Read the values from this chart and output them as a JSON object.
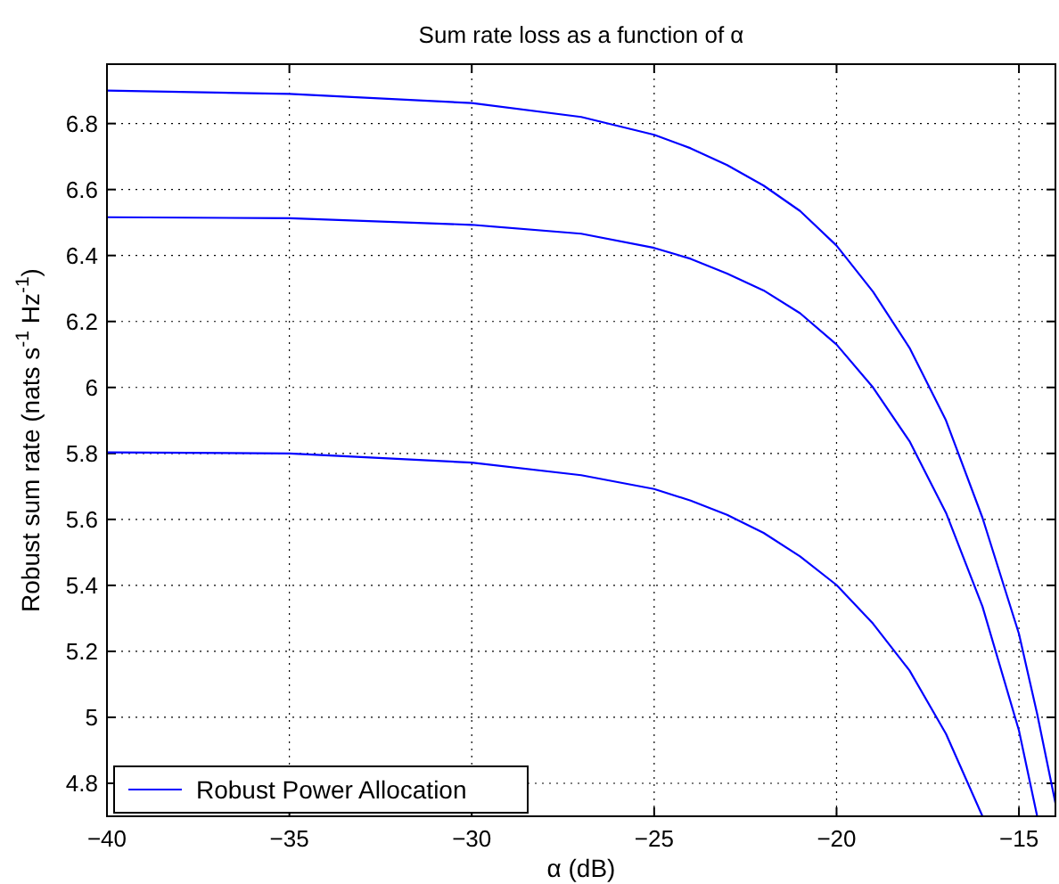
{
  "chart_data": {
    "type": "line",
    "title": "Sum rate loss as a function of α",
    "xlabel": "α (dB)",
    "ylabel": "Robust sum rate (nats s$^{-1}$ Hz$^{-1}$)",
    "xlim": [
      -40,
      -14
    ],
    "ylim": [
      4.7,
      6.98
    ],
    "xticks": [
      {
        "value": -40,
        "label": "−40"
      },
      {
        "value": -35,
        "label": "−35"
      },
      {
        "value": -30,
        "label": "−30"
      },
      {
        "value": -25,
        "label": "−25"
      },
      {
        "value": -20,
        "label": "−20"
      },
      {
        "value": -15,
        "label": "−15"
      }
    ],
    "yticks": [
      4.8,
      5,
      5.2,
      5.4,
      5.6,
      5.8,
      6,
      6.2,
      6.4,
      6.6,
      6.8
    ],
    "grid": true,
    "legend": "bottom left",
    "line_style": "solid",
    "marker": "none",
    "series": [
      {
        "name": "Robust Power Allocation",
        "color": "#0000ff",
        "x": [
          -40,
          -35,
          -30,
          -27,
          -25,
          -24,
          -23,
          -22,
          -21,
          -20,
          -19,
          -18,
          -17,
          -16,
          -15,
          -14.5,
          -14
        ],
        "values": [
          6.9,
          6.89,
          6.862,
          6.82,
          6.766,
          6.725,
          6.674,
          6.612,
          6.535,
          6.43,
          6.29,
          6.12,
          5.9,
          5.605,
          5.253,
          5.01,
          4.74
        ]
      },
      {
        "color": "#0000ff",
        "x": [
          -40,
          -35,
          -30,
          -27,
          -25,
          -24,
          -23,
          -22,
          -21,
          -20,
          -19,
          -18,
          -17,
          -16,
          -15,
          -14.5
        ],
        "values": [
          6.516,
          6.513,
          6.493,
          6.466,
          6.423,
          6.39,
          6.345,
          6.294,
          6.225,
          6.13,
          6.0,
          5.837,
          5.62,
          5.336,
          4.96,
          4.7
        ]
      },
      {
        "color": "#0000ff",
        "x": [
          -40,
          -35,
          -30,
          -27,
          -25,
          -24,
          -23,
          -22,
          -21,
          -20,
          -19,
          -18,
          -17,
          -16
        ],
        "values": [
          5.803,
          5.8,
          5.772,
          5.734,
          5.692,
          5.657,
          5.614,
          5.559,
          5.488,
          5.401,
          5.284,
          5.142,
          4.95,
          4.7
        ]
      }
    ]
  }
}
